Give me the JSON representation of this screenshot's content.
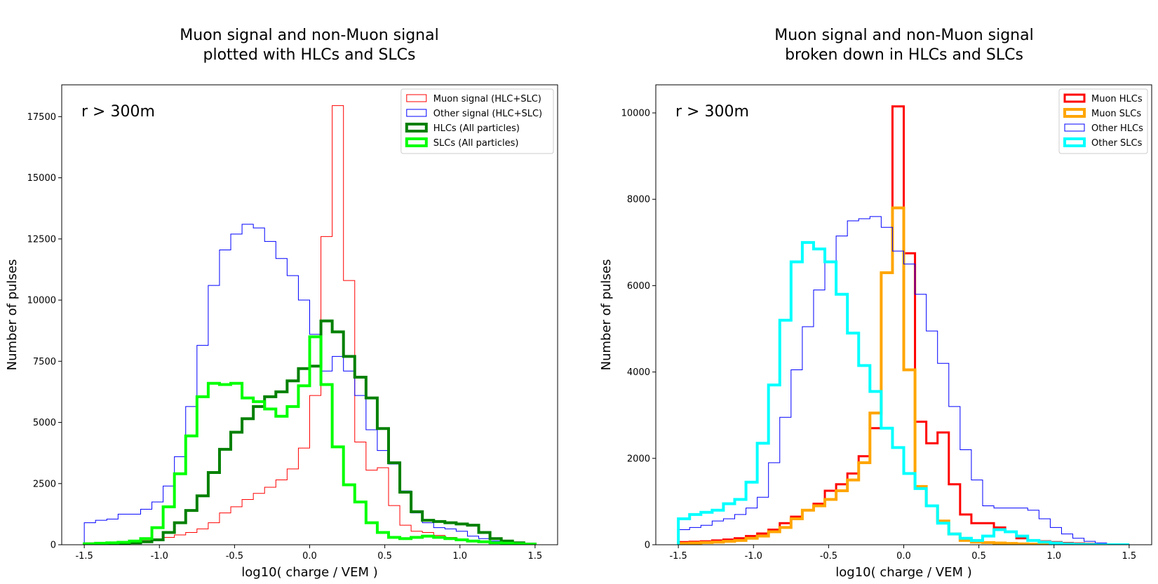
{
  "chart_data": [
    {
      "type": "histogram",
      "title_lines": [
        "Muon signal and non-Muon signal",
        "plotted with HLCs and SLCs"
      ],
      "xlabel": "log10( charge / VEM )",
      "ylabel": "Number of pulses",
      "annotation": "r > 300m",
      "xlim": [
        -1.65,
        1.65
      ],
      "ylim": [
        0,
        18800
      ],
      "xticks": [
        "-1.5",
        "-1.0",
        "-0.5",
        "0.0",
        "0.5",
        "1.0",
        "1.5"
      ],
      "xtick_values": [
        -1.5,
        -1.0,
        -0.5,
        0.0,
        0.5,
        1.0,
        1.5
      ],
      "yticks": [
        "0",
        "2500",
        "5000",
        "7500",
        "10000",
        "12500",
        "15000",
        "17500"
      ],
      "ytick_values": [
        0,
        2500,
        5000,
        7500,
        10000,
        12500,
        15000,
        17500
      ],
      "bin_edges_range": [
        -1.5,
        1.5
      ],
      "bin_count": 40,
      "legend_position": "upper right",
      "series": [
        {
          "name": "Muon signal (HLC+SLC)",
          "color": "#ff0000",
          "linewidth": 1,
          "values": [
            80,
            90,
            100,
            130,
            160,
            200,
            230,
            300,
            400,
            500,
            650,
            900,
            1300,
            1550,
            1850,
            2100,
            2350,
            2650,
            3100,
            3950,
            6100,
            12600,
            17950,
            10800,
            4200,
            3050,
            3150,
            1600,
            800,
            550,
            500,
            380,
            300,
            200,
            150,
            120,
            90,
            60,
            40,
            20
          ]
        },
        {
          "name": "Other signal (HLC+SLC)",
          "color": "#0000ff",
          "linewidth": 1,
          "values": [
            900,
            1000,
            1050,
            1250,
            1250,
            1450,
            1750,
            2400,
            3600,
            5650,
            8150,
            10600,
            12050,
            12700,
            13100,
            12950,
            12400,
            11700,
            11000,
            10000,
            8600,
            7100,
            7700,
            7100,
            6100,
            4700,
            3850,
            3300,
            2200,
            1300,
            900,
            700,
            650,
            550,
            350,
            250,
            150,
            80,
            40,
            20
          ]
        },
        {
          "name": "HLCs (All particles)",
          "color": "#008000",
          "linewidth": 4,
          "values": [
            20,
            30,
            40,
            50,
            80,
            120,
            200,
            500,
            900,
            1400,
            2000,
            2950,
            3900,
            4600,
            5150,
            5650,
            6050,
            6250,
            6700,
            7200,
            7300,
            9150,
            8700,
            7700,
            6850,
            6000,
            4750,
            3350,
            2150,
            1350,
            1000,
            950,
            900,
            850,
            800,
            500,
            250,
            150,
            80,
            30
          ]
        },
        {
          "name": "SLCs (All particles)",
          "color": "#00ff00",
          "linewidth": 4,
          "values": [
            40,
            60,
            80,
            100,
            150,
            250,
            700,
            1550,
            2900,
            4450,
            6050,
            6600,
            6550,
            6600,
            6000,
            5850,
            5550,
            5250,
            5650,
            6500,
            8500,
            6550,
            4000,
            2450,
            1750,
            900,
            500,
            300,
            250,
            300,
            350,
            300,
            250,
            200,
            150,
            120,
            80,
            60,
            40,
            20
          ]
        }
      ]
    },
    {
      "type": "histogram",
      "title_lines": [
        "Muon signal and non-Muon signal",
        "broken down in HLCs and SLCs"
      ],
      "xlabel": "log10( charge / VEM )",
      "ylabel": "Number of pulses",
      "annotation": "r > 300m",
      "xlim": [
        -1.65,
        1.65
      ],
      "ylim": [
        0,
        10650
      ],
      "xticks": [
        "-1.5",
        "-1.0",
        "-0.5",
        "0.0",
        "0.5",
        "1.0",
        "1.5"
      ],
      "xtick_values": [
        -1.5,
        -1.0,
        -0.5,
        0.0,
        0.5,
        1.0,
        1.5
      ],
      "yticks": [
        "0",
        "2000",
        "4000",
        "6000",
        "8000",
        "10000"
      ],
      "ytick_values": [
        0,
        2000,
        4000,
        6000,
        8000,
        10000
      ],
      "bin_edges_range": [
        -1.5,
        1.5
      ],
      "bin_count": 40,
      "legend_position": "upper right",
      "series": [
        {
          "name": "Muon HLCs",
          "color": "#ff0000",
          "linewidth": 3,
          "values": [
            60,
            70,
            80,
            100,
            120,
            150,
            200,
            260,
            350,
            500,
            650,
            800,
            950,
            1250,
            1400,
            1650,
            2050,
            2700,
            6300,
            10150,
            6750,
            2850,
            2350,
            2600,
            1400,
            700,
            500,
            500,
            400,
            300,
            150,
            100,
            80,
            60,
            40,
            30,
            20,
            10,
            5,
            0
          ]
        },
        {
          "name": "Muon SLCs",
          "color": "#ffa500",
          "linewidth": 4,
          "values": [
            30,
            40,
            50,
            60,
            80,
            100,
            150,
            200,
            300,
            400,
            600,
            800,
            900,
            1050,
            1250,
            1500,
            1900,
            3050,
            6300,
            7800,
            4050,
            1350,
            900,
            550,
            250,
            100,
            60,
            50,
            40,
            30,
            20,
            15,
            10,
            5,
            5,
            5,
            0,
            0,
            0,
            0
          ]
        },
        {
          "name": "Other HLCs",
          "color": "#0000ff",
          "linewidth": 1,
          "values": [
            350,
            400,
            450,
            550,
            600,
            700,
            850,
            1100,
            1900,
            2950,
            4050,
            5050,
            5900,
            6550,
            7150,
            7500,
            7550,
            7600,
            7350,
            6800,
            6500,
            5800,
            4950,
            4200,
            3200,
            2200,
            1500,
            900,
            850,
            850,
            850,
            800,
            600,
            400,
            250,
            150,
            80,
            40,
            20,
            10
          ]
        },
        {
          "name": "Other SLCs",
          "color": "#00ffff",
          "linewidth": 4,
          "values": [
            600,
            700,
            750,
            800,
            950,
            1050,
            1450,
            2350,
            3700,
            5200,
            6550,
            7000,
            6850,
            6550,
            5800,
            4900,
            4150,
            3550,
            2700,
            2250,
            1650,
            1300,
            900,
            500,
            250,
            150,
            100,
            200,
            350,
            300,
            200,
            100,
            60,
            40,
            20,
            10,
            5,
            0,
            0,
            0
          ]
        }
      ]
    }
  ]
}
